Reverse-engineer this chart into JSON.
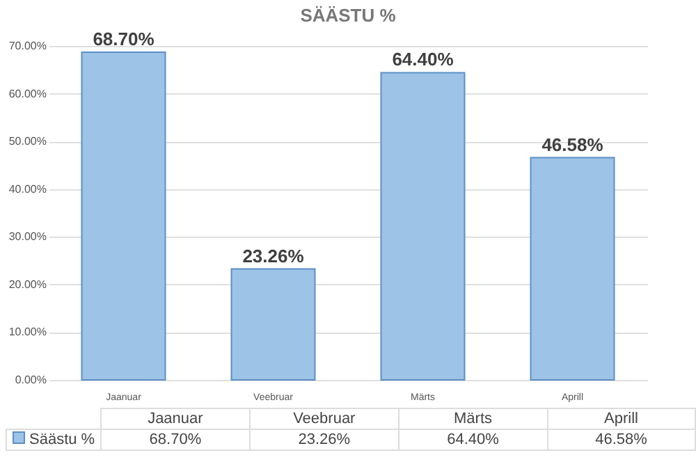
{
  "chart_data": {
    "type": "bar",
    "title": "SÄÄSTU %",
    "categories": [
      "Jaanuar",
      "Veebruar",
      "Märts",
      "Aprill"
    ],
    "series": [
      {
        "name": "Säästu %",
        "color": "#9dc3e6",
        "values": [
          68.7,
          23.26,
          64.4,
          46.58
        ],
        "value_labels": [
          "68.70%",
          "23.26%",
          "64.40%",
          "46.58%"
        ]
      }
    ],
    "ylim": [
      0,
      70
    ],
    "yticks": [
      {
        "value": 0,
        "label": "0.00%"
      },
      {
        "value": 10,
        "label": "10.00%"
      },
      {
        "value": 20,
        "label": "20.00%"
      },
      {
        "value": 30,
        "label": "30.00%"
      },
      {
        "value": 40,
        "label": "40.00%"
      },
      {
        "value": 50,
        "label": "50.00%"
      },
      {
        "value": 60,
        "label": "60.00%"
      },
      {
        "value": 70,
        "label": "70.00%"
      }
    ],
    "grid": "y",
    "legend": "bottom"
  }
}
